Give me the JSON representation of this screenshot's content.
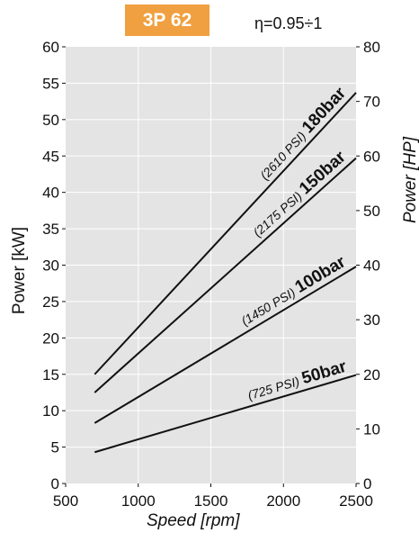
{
  "header": {
    "model_badge": "3P 62",
    "efficiency": "η=0.95÷1"
  },
  "colors": {
    "badge": "#f0a040",
    "plot_background": "#e4e4e4",
    "grid": "#ffffff",
    "line": "#111111"
  },
  "chart_data": {
    "type": "line",
    "xlabel": "Speed [rpm]",
    "ylabel": "Power [kW]",
    "y2label": "Power [HP]",
    "xlim": [
      500,
      2500
    ],
    "ylim": [
      0,
      60
    ],
    "y2lim": [
      0,
      80
    ],
    "xticks": [
      500,
      1000,
      1500,
      2000,
      2500
    ],
    "yticks": [
      0,
      5,
      10,
      15,
      20,
      25,
      30,
      35,
      40,
      45,
      50,
      55,
      60
    ],
    "y2ticks": [
      0,
      10,
      20,
      30,
      40,
      50,
      60,
      70,
      80
    ],
    "grid": true,
    "series": [
      {
        "name": "50bar",
        "psi": "(725 PSI)",
        "x": [
          700,
          2500
        ],
        "y": [
          4.3,
          14.9
        ]
      },
      {
        "name": "100bar",
        "psi": "(1450 PSI)",
        "x": [
          700,
          2500
        ],
        "y": [
          8.3,
          29.8
        ]
      },
      {
        "name": "150bar",
        "psi": "(2175 PSI)",
        "x": [
          700,
          2500
        ],
        "y": [
          12.5,
          44.7
        ]
      },
      {
        "name": "180bar",
        "psi": "(2610 PSI)",
        "x": [
          700,
          2500
        ],
        "y": [
          15.0,
          53.7
        ]
      }
    ]
  }
}
